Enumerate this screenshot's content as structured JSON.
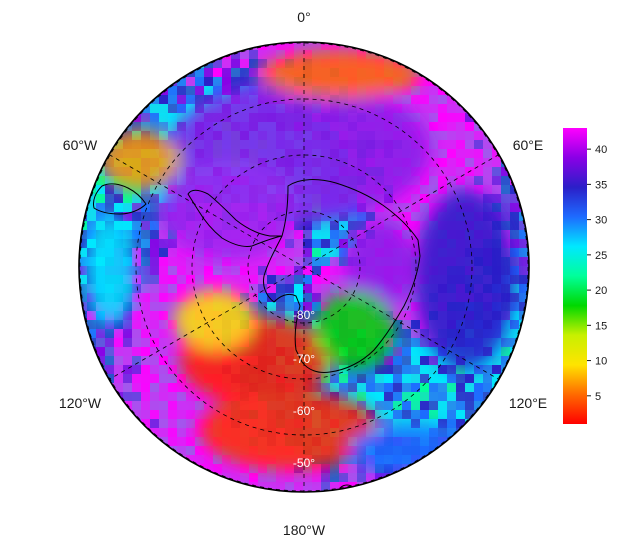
{
  "map": {
    "projection": "south-polar stereographic",
    "meridian_labels": {
      "top": "0°",
      "upper_left": "60°W",
      "upper_right": "60°E",
      "lower_left": "120°W",
      "lower_right": "120°E",
      "bottom": "180°W"
    },
    "latitude_labels": [
      "-80°",
      "-70°",
      "-60°",
      "-50°"
    ],
    "graticule_style": "dashed"
  },
  "colorbar": {
    "ticks": [
      "5",
      "10",
      "15",
      "20",
      "25",
      "30",
      "35",
      "40"
    ],
    "min": 1,
    "max": 43,
    "palette": [
      "#ff0000",
      "#ff6a00",
      "#ffe400",
      "#c8f000",
      "#00d800",
      "#00ff9a",
      "#00e8ff",
      "#1e6bff",
      "#2b1fc8",
      "#8a00e6",
      "#ff00ff"
    ]
  },
  "colors": {
    "high": "#8a1ee8",
    "mid": "#00e08a",
    "low": "#ff2000",
    "land": "#1e6bff"
  }
}
